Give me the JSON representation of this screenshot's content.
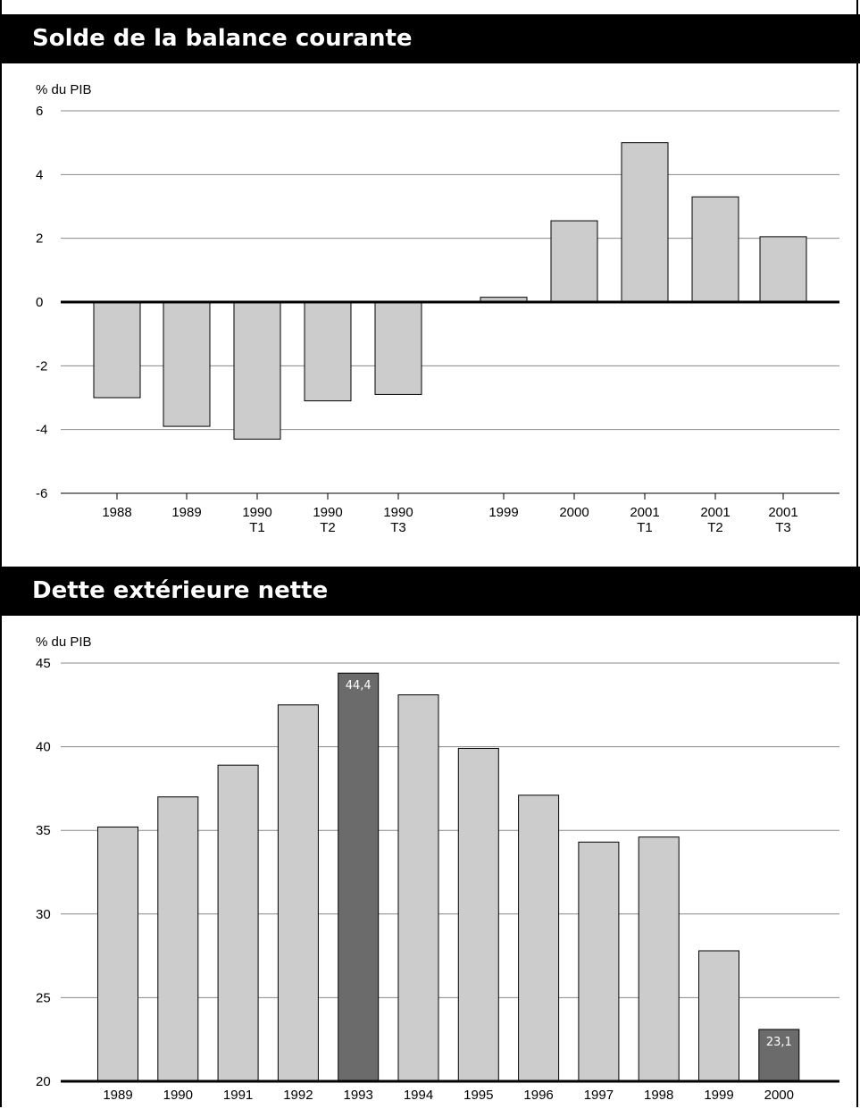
{
  "chart_data": [
    {
      "type": "bar",
      "title": "Solde de la balance courante",
      "ylabel": "% du PIB",
      "ylim": [
        -6,
        6
      ],
      "yticks": [
        6,
        4,
        2,
        0,
        -2,
        -4,
        -6
      ],
      "ytick_labels": [
        "6",
        "4",
        "2",
        "0",
        "-2",
        "-4",
        "-6"
      ],
      "grid": true,
      "categories": [
        [
          "1988"
        ],
        [
          "1989"
        ],
        [
          "1990",
          "T1"
        ],
        [
          "1990",
          "T2"
        ],
        [
          "1990",
          "T3"
        ],
        [
          "1999"
        ],
        [
          "2000"
        ],
        [
          "2001",
          "T1"
        ],
        [
          "2001",
          "T2"
        ],
        [
          "2001",
          "T3"
        ]
      ],
      "values": [
        -3.0,
        -3.9,
        -4.3,
        -3.1,
        -2.9,
        0.15,
        2.55,
        5.0,
        3.3,
        2.05
      ],
      "colors": {
        "bar": "#cccccc",
        "highlight": "#6b6b6b"
      }
    },
    {
      "type": "bar",
      "title": "Dette extérieure nette",
      "ylabel": "% du PIB",
      "ylim": [
        20,
        45
      ],
      "yticks": [
        45,
        40,
        35,
        30,
        25,
        20
      ],
      "ytick_labels": [
        "45",
        "40",
        "35",
        "30",
        "25",
        "20"
      ],
      "grid": true,
      "categories": [
        [
          "1989"
        ],
        [
          "1990"
        ],
        [
          "1991"
        ],
        [
          "1992"
        ],
        [
          "1993"
        ],
        [
          "1994"
        ],
        [
          "1995"
        ],
        [
          "1996"
        ],
        [
          "1997"
        ],
        [
          "1998"
        ],
        [
          "1999"
        ],
        [
          "2000"
        ]
      ],
      "values": [
        35.2,
        37.0,
        38.9,
        42.5,
        44.4,
        43.1,
        39.9,
        37.1,
        34.3,
        34.6,
        27.8,
        23.1
      ],
      "highlight": [
        false,
        false,
        false,
        false,
        true,
        false,
        false,
        false,
        false,
        false,
        false,
        true
      ],
      "data_labels": [
        "",
        "",
        "",
        "",
        "44,4",
        "",
        "",
        "",
        "",
        "",
        "",
        "23,1"
      ],
      "colors": {
        "bar": "#cccccc",
        "highlight": "#6b6b6b"
      }
    }
  ]
}
